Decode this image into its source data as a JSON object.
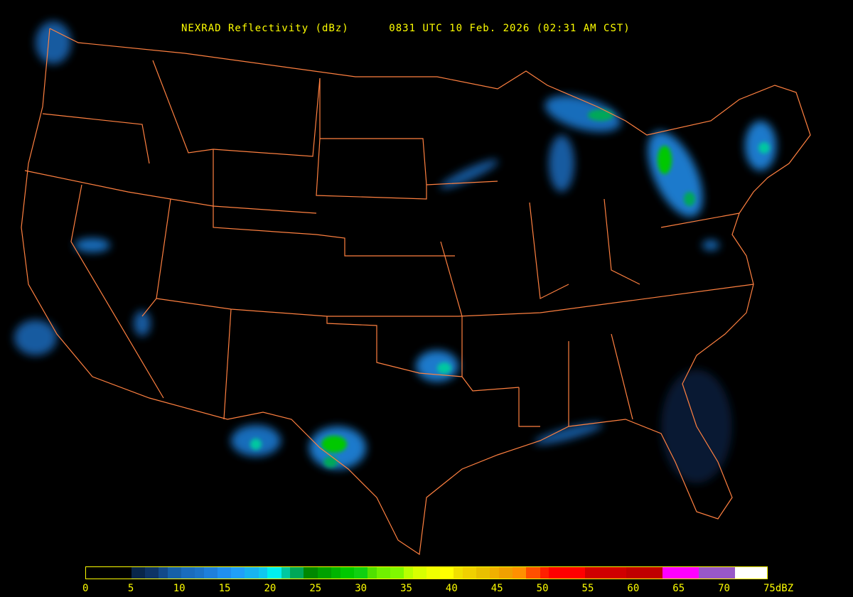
{
  "title": {
    "product": "NEXRAD Reflectivity (dBz)",
    "time": "0831 UTC 10 Feb. 2026 (02:31 AM CST)"
  },
  "colors": {
    "background": "#000000",
    "boundaries": "#ff8040",
    "text": "#ffff00"
  },
  "legend": {
    "unit": "dBZ",
    "range": [
      0,
      75
    ],
    "tick_labels": [
      "0",
      "5",
      "10",
      "15",
      "20",
      "25",
      "30",
      "35",
      "40",
      "45",
      "50",
      "55",
      "60",
      "65",
      "70",
      "75dBZ"
    ],
    "tick_values": [
      0,
      5,
      10,
      15,
      20,
      25,
      30,
      35,
      40,
      45,
      50,
      55,
      60,
      65,
      70,
      75
    ],
    "segments": [
      {
        "from": 0,
        "to": 5,
        "color": "#000000"
      },
      {
        "from": 5,
        "to": 6.5,
        "color": "#08264a"
      },
      {
        "from": 6.5,
        "to": 8,
        "color": "#0d3466"
      },
      {
        "from": 8,
        "to": 9,
        "color": "#124a8a"
      },
      {
        "from": 9,
        "to": 10.5,
        "color": "#1660a8"
      },
      {
        "from": 10.5,
        "to": 12,
        "color": "#1a6cbd"
      },
      {
        "from": 12,
        "to": 13,
        "color": "#1c74c8"
      },
      {
        "from": 13,
        "to": 14.5,
        "color": "#1e80dc"
      },
      {
        "from": 14.5,
        "to": 16,
        "color": "#2090f0"
      },
      {
        "from": 16,
        "to": 17.5,
        "color": "#20a0f8"
      },
      {
        "from": 17.5,
        "to": 19,
        "color": "#18b4f0"
      },
      {
        "from": 19,
        "to": 20,
        "color": "#10c8f0"
      },
      {
        "from": 20,
        "to": 21.5,
        "color": "#00f0f0"
      },
      {
        "from": 21.5,
        "to": 22.5,
        "color": "#00c8a0"
      },
      {
        "from": 22.5,
        "to": 24,
        "color": "#00a858"
      },
      {
        "from": 24,
        "to": 25.5,
        "color": "#008800"
      },
      {
        "from": 25.5,
        "to": 27,
        "color": "#00a000"
      },
      {
        "from": 27,
        "to": 28,
        "color": "#00b400"
      },
      {
        "from": 28,
        "to": 29.5,
        "color": "#00c800"
      },
      {
        "from": 29.5,
        "to": 31,
        "color": "#10d010"
      },
      {
        "from": 31,
        "to": 32,
        "color": "#50e000"
      },
      {
        "from": 32,
        "to": 33.5,
        "color": "#70f000"
      },
      {
        "from": 33.5,
        "to": 35,
        "color": "#80f800"
      },
      {
        "from": 35,
        "to": 36,
        "color": "#b8ff00"
      },
      {
        "from": 36,
        "to": 37.5,
        "color": "#d8ff00"
      },
      {
        "from": 37.5,
        "to": 39,
        "color": "#f0ff00"
      },
      {
        "from": 39,
        "to": 40.5,
        "color": "#ffff00"
      },
      {
        "from": 40.5,
        "to": 41.5,
        "color": "#f0e000"
      },
      {
        "from": 41.5,
        "to": 43,
        "color": "#f0d000"
      },
      {
        "from": 43,
        "to": 44.5,
        "color": "#e8c000"
      },
      {
        "from": 44.5,
        "to": 45.5,
        "color": "#f0b000"
      },
      {
        "from": 45.5,
        "to": 47,
        "color": "#f0a000"
      },
      {
        "from": 47,
        "to": 48.5,
        "color": "#ff9000"
      },
      {
        "from": 48.5,
        "to": 50,
        "color": "#ff5000"
      },
      {
        "from": 50,
        "to": 51,
        "color": "#ff2000"
      },
      {
        "from": 51,
        "to": 55,
        "color": "#ff0000"
      },
      {
        "from": 55,
        "to": 59.5,
        "color": "#d00000"
      },
      {
        "from": 59.5,
        "to": 63.5,
        "color": "#c00000"
      },
      {
        "from": 63.5,
        "to": 67.5,
        "color": "#ff00ff"
      },
      {
        "from": 67.5,
        "to": 71.5,
        "color": "#9858c8"
      },
      {
        "from": 71.5,
        "to": 75,
        "color": "#ffffff"
      }
    ]
  }
}
